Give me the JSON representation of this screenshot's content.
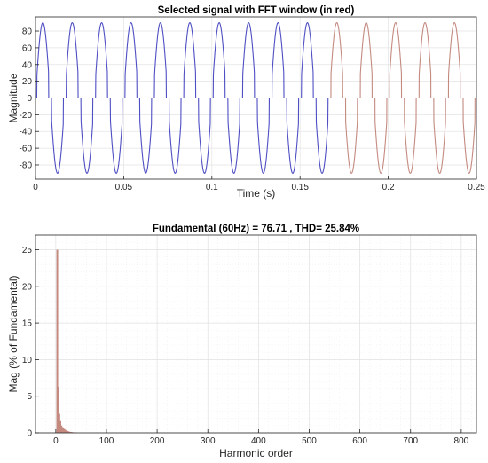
{
  "chart_data": [
    {
      "type": "line",
      "title": "Selected signal with FFT window (in red)",
      "xlabel": "Time (s)",
      "ylabel": "Magnitude",
      "xlim": [
        0,
        0.25
      ],
      "ylim": [
        -97,
        97
      ],
      "xticks": [
        0,
        0.05,
        0.1,
        0.15,
        0.2,
        0.25
      ],
      "xtick_labels": [
        "0",
        "0.05",
        "0.1",
        "0.15",
        "0.2",
        "0.25"
      ],
      "yticks": [
        80,
        60,
        40,
        20,
        0,
        -20,
        -40,
        -60,
        -80
      ],
      "ytick_labels": [
        "80",
        "60",
        "40",
        "20",
        "0",
        "-20",
        "-40",
        "-60",
        "-80"
      ],
      "grid": true,
      "signal": {
        "frequency_hz": 60,
        "peak": 90,
        "shape": "chopped sine with flat zero segments near each zero crossing",
        "zero_band_fraction_of_half_cycle": 0.1
      },
      "series": [
        {
          "color": "#4f4fc4",
          "x_range": [
            0,
            0.1667
          ]
        },
        {
          "color": "#c48a80",
          "x_range": [
            0.1667,
            0.25
          ]
        }
      ]
    },
    {
      "type": "bar",
      "title": "Fundamental (60Hz) = 76.71 , THD= 25.84%",
      "xlabel": "Harmonic order",
      "ylabel": "Mag (% of Fundamental)",
      "xlim": [
        -40,
        830
      ],
      "ylim": [
        0,
        27
      ],
      "xticks": [
        0,
        100,
        200,
        300,
        400,
        500,
        600,
        700,
        800
      ],
      "xtick_labels": [
        "0",
        "100",
        "200",
        "300",
        "400",
        "500",
        "600",
        "700",
        "800"
      ],
      "yticks": [
        0,
        5,
        10,
        15,
        20,
        25
      ],
      "ytick_labels": [
        "0",
        "5",
        "10",
        "15",
        "20",
        "25"
      ],
      "grid": true,
      "minor_grid": true,
      "color": "#c48a80",
      "bars": [
        {
          "x": 3,
          "y": 25
        },
        {
          "x": 5,
          "y": 6.3
        },
        {
          "x": 7,
          "y": 2.6
        },
        {
          "x": 9,
          "y": 1.6
        },
        {
          "x": 11,
          "y": 1.0
        },
        {
          "x": 13,
          "y": 0.8
        },
        {
          "x": 15,
          "y": 0.6
        },
        {
          "x": 17,
          "y": 0.5
        },
        {
          "x": 19,
          "y": 0.4
        },
        {
          "x": 21,
          "y": 0.3
        },
        {
          "x": 23,
          "y": 0.25
        },
        {
          "x": 25,
          "y": 0.2
        },
        {
          "x": 27,
          "y": 0.15
        },
        {
          "x": 29,
          "y": 0.12
        },
        {
          "x": 31,
          "y": 0.1
        },
        {
          "x": 33,
          "y": 0.08
        },
        {
          "x": 35,
          "y": 0.06
        },
        {
          "x": 37,
          "y": 0.05
        },
        {
          "x": 39,
          "y": 0.04
        }
      ]
    }
  ]
}
